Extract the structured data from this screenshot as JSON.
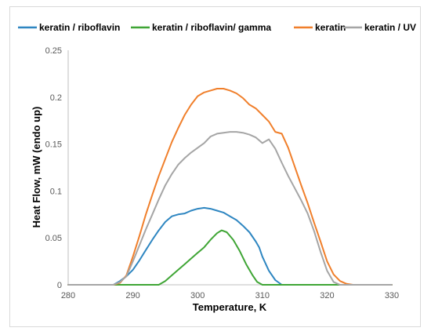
{
  "chart_data": {
    "type": "line",
    "title": "",
    "xlabel": "Temperature, K",
    "ylabel": "Heat Flow, mW (endo up)",
    "xlim": [
      280,
      330
    ],
    "ylim": [
      0,
      0.25
    ],
    "x_ticks": [
      "280",
      "290",
      "300",
      "310",
      "320",
      "330"
    ],
    "y_ticks": [
      "0",
      "0.05",
      "0.1",
      "0.15",
      "0.2",
      "0.25"
    ],
    "grid": false,
    "legend": "top",
    "series": [
      {
        "name": "keratin / riboflavin",
        "color": "#2E86C1",
        "x": [
          280,
          287,
          288,
          289,
          290,
          291,
          292,
          293,
          294,
          295,
          296,
          297,
          298,
          299,
          300,
          301,
          302,
          303,
          304,
          305,
          306,
          307,
          308,
          309,
          309.5,
          310,
          311,
          312,
          313,
          320,
          330
        ],
        "y": [
          0,
          0,
          0.004,
          0.009,
          0.016,
          0.026,
          0.037,
          0.048,
          0.058,
          0.067,
          0.073,
          0.075,
          0.076,
          0.079,
          0.081,
          0.082,
          0.081,
          0.079,
          0.077,
          0.073,
          0.069,
          0.063,
          0.056,
          0.046,
          0.04,
          0.03,
          0.015,
          0.005,
          0,
          0,
          0
        ]
      },
      {
        "name": "keratin / riboflavin/ gamma",
        "color": "#3FA535",
        "x": [
          280,
          294,
          295,
          296,
          297,
          298,
          299,
          300,
          301,
          302,
          303,
          303.7,
          304.5,
          305.5,
          306.5,
          307.5,
          308.5,
          309.2,
          310,
          330
        ],
        "y": [
          0,
          0,
          0.004,
          0.01,
          0.016,
          0.022,
          0.028,
          0.034,
          0.04,
          0.048,
          0.055,
          0.058,
          0.056,
          0.048,
          0.036,
          0.022,
          0.01,
          0.003,
          0,
          0
        ]
      },
      {
        "name": "keratin",
        "color": "#F07F2B",
        "x": [
          280,
          287,
          288,
          289,
          290,
          291,
          292,
          293,
          294,
          295,
          296,
          297,
          298,
          299,
          300,
          301,
          302,
          303,
          304,
          305,
          306,
          307,
          308,
          309,
          310,
          311,
          312,
          313,
          314,
          315,
          316,
          317,
          318,
          319,
          320,
          321,
          322,
          323,
          324,
          325,
          330
        ],
        "y": [
          0,
          0,
          0.002,
          0.01,
          0.03,
          0.052,
          0.075,
          0.096,
          0.116,
          0.134,
          0.152,
          0.167,
          0.181,
          0.192,
          0.201,
          0.205,
          0.207,
          0.209,
          0.209,
          0.207,
          0.204,
          0.199,
          0.192,
          0.188,
          0.181,
          0.174,
          0.163,
          0.161,
          0.146,
          0.126,
          0.106,
          0.087,
          0.066,
          0.046,
          0.025,
          0.011,
          0.004,
          0.001,
          0,
          0,
          0
        ]
      },
      {
        "name": "keratin / UV",
        "color": "#A5A5A5",
        "x": [
          280,
          287,
          288,
          289,
          290,
          291,
          292,
          293,
          294,
          295,
          296,
          297,
          298,
          299,
          300,
          301,
          302,
          303,
          304,
          305,
          306,
          307,
          308,
          309,
          310,
          311,
          312,
          313,
          314,
          315,
          316,
          317,
          318,
          319,
          320,
          321,
          322,
          330
        ],
        "y": [
          0,
          0,
          0.003,
          0.009,
          0.025,
          0.042,
          0.059,
          0.075,
          0.091,
          0.106,
          0.118,
          0.128,
          0.135,
          0.141,
          0.146,
          0.151,
          0.158,
          0.161,
          0.162,
          0.163,
          0.163,
          0.162,
          0.16,
          0.157,
          0.151,
          0.155,
          0.145,
          0.13,
          0.116,
          0.103,
          0.09,
          0.076,
          0.057,
          0.035,
          0.015,
          0.003,
          0,
          0
        ]
      }
    ]
  }
}
